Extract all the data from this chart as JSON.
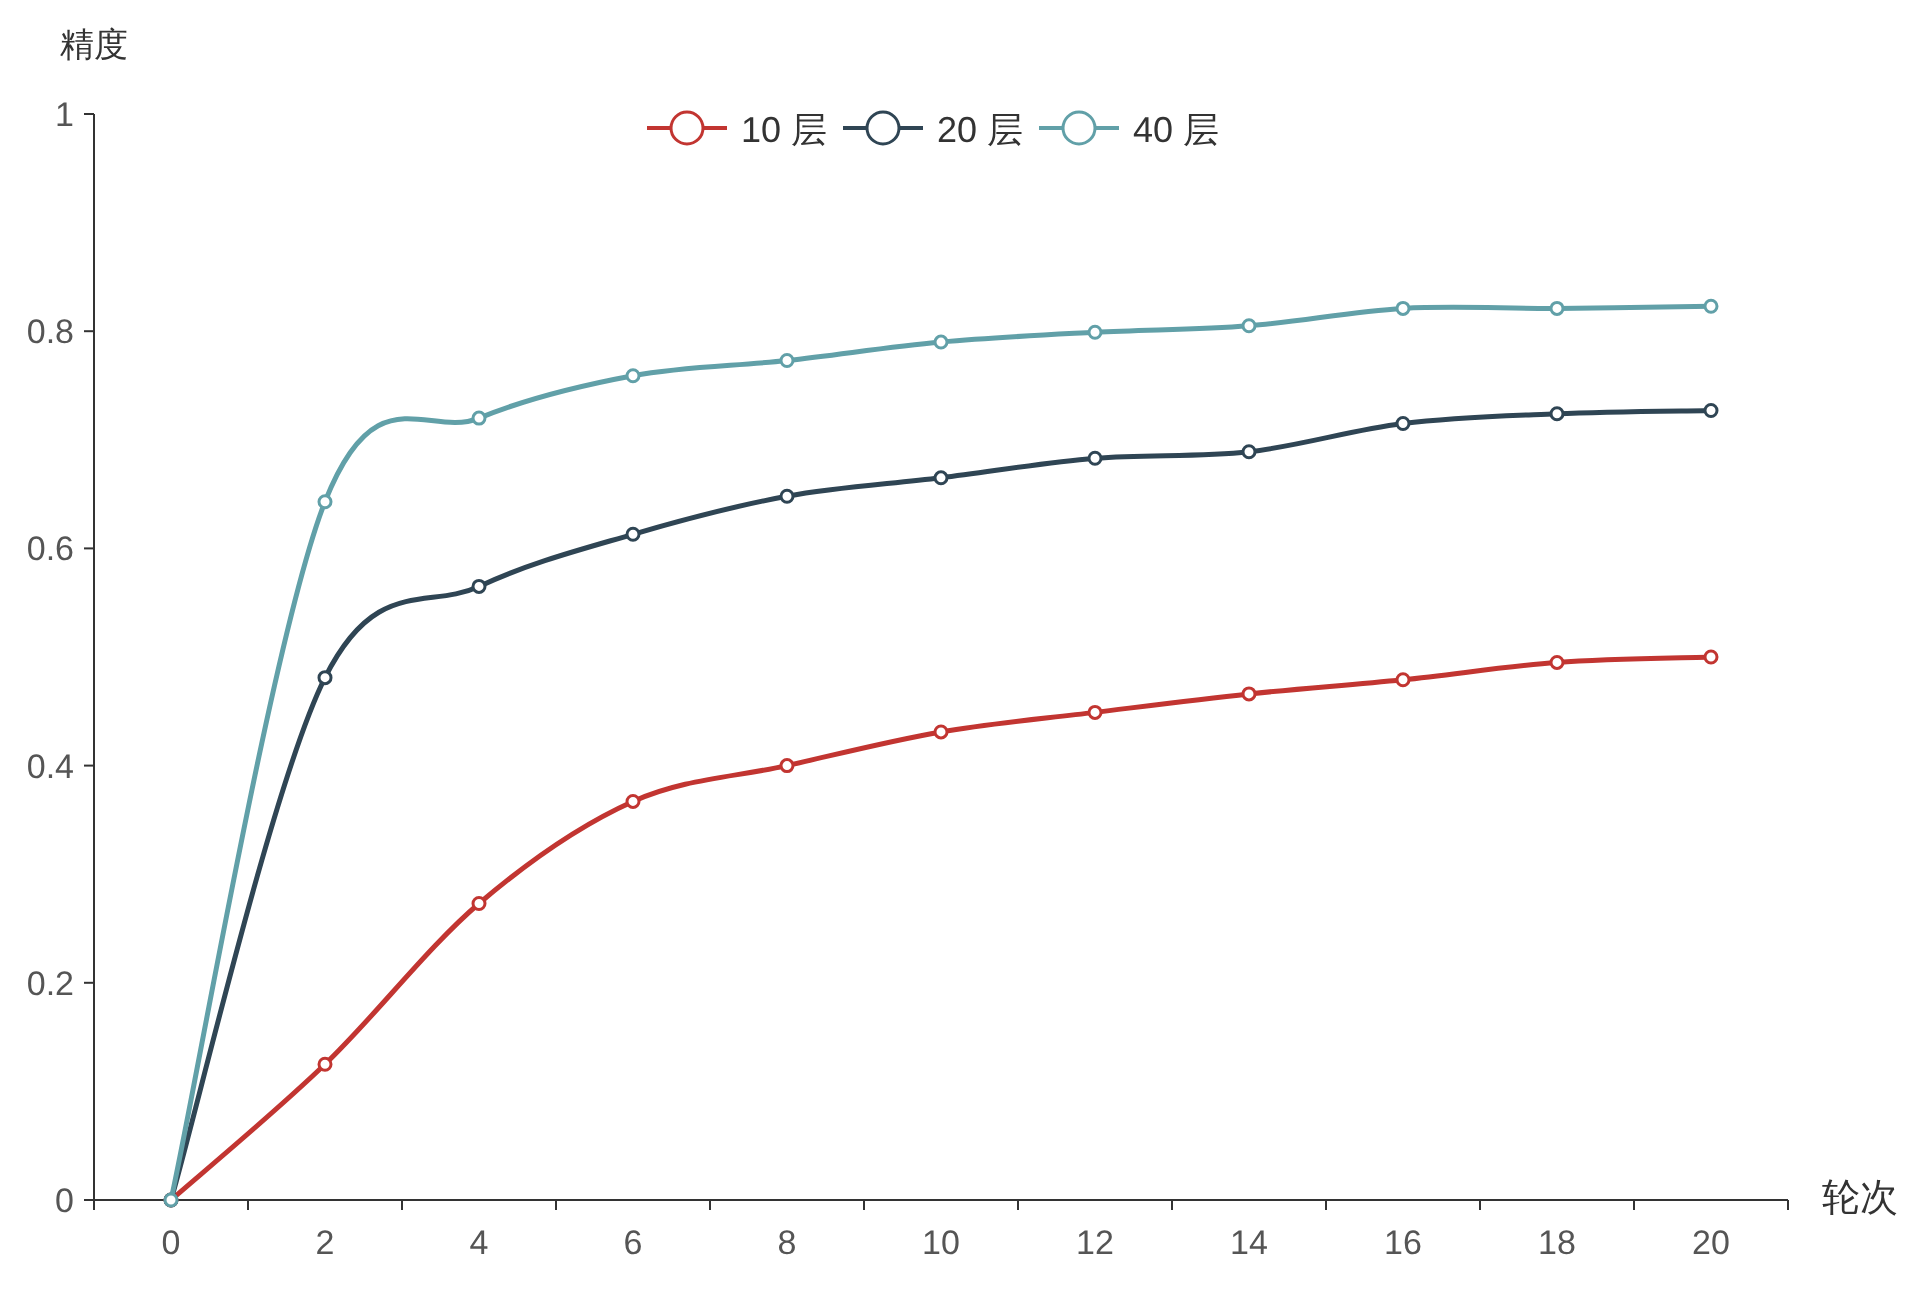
{
  "chart_data": {
    "type": "line",
    "xlabel": "轮次",
    "ylabel": "精度",
    "categories": [
      "0",
      "2",
      "4",
      "6",
      "8",
      "10",
      "12",
      "14",
      "16",
      "18",
      "20"
    ],
    "ylim": [
      0,
      1
    ],
    "yticks": [
      0,
      0.2,
      0.4,
      0.6,
      0.8,
      1
    ],
    "grid": false,
    "legend": "top",
    "marker": "circle",
    "line_style": "solid",
    "series": [
      {
        "name": "10 层",
        "color": "#c23531",
        "values": [
          0,
          0.125,
          0.273,
          0.367,
          0.4,
          0.431,
          0.449,
          0.466,
          0.479,
          0.495,
          0.5
        ]
      },
      {
        "name": "20 层",
        "color": "#2f4554",
        "values": [
          0,
          0.481,
          0.565,
          0.613,
          0.648,
          0.665,
          0.683,
          0.689,
          0.715,
          0.724,
          0.727
        ]
      },
      {
        "name": "40 层",
        "color": "#61a0a8",
        "values": [
          0,
          0.643,
          0.72,
          0.759,
          0.773,
          0.79,
          0.799,
          0.805,
          0.821,
          0.821,
          0.823
        ]
      }
    ]
  }
}
